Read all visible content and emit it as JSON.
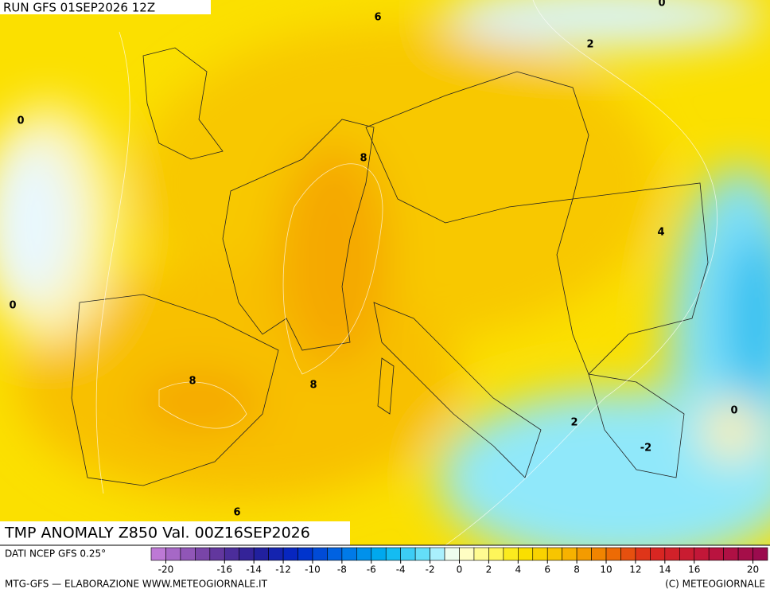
{
  "header": {
    "run": "RUN GFS 01SEP2026 12Z"
  },
  "map": {
    "contour_labels": [
      6,
      2,
      0,
      0,
      8,
      4,
      0,
      8,
      8,
      2,
      0,
      -2,
      6
    ]
  },
  "footer": {
    "title": "TMP ANOMALY Z850 Val. 00Z16SEP2026",
    "source": "DATI NCEP GFS 0.25°",
    "credit_left": "MTG-GFS — ELABORAZIONE WWW.METEOGIORNALE.IT",
    "credit_right": "(C) METEOGIORNALE"
  },
  "legend": {
    "ticks": [
      -20,
      -16,
      -14,
      -12,
      -10,
      -8,
      -6,
      -4,
      -2,
      0,
      2,
      4,
      6,
      8,
      10,
      12,
      14,
      16,
      20
    ],
    "tick_values": [
      -20,
      -16,
      -14,
      -12,
      -10,
      -8,
      -6,
      -4,
      -2,
      0,
      2,
      4,
      6,
      8,
      10,
      12,
      14,
      16,
      20
    ]
  }
}
